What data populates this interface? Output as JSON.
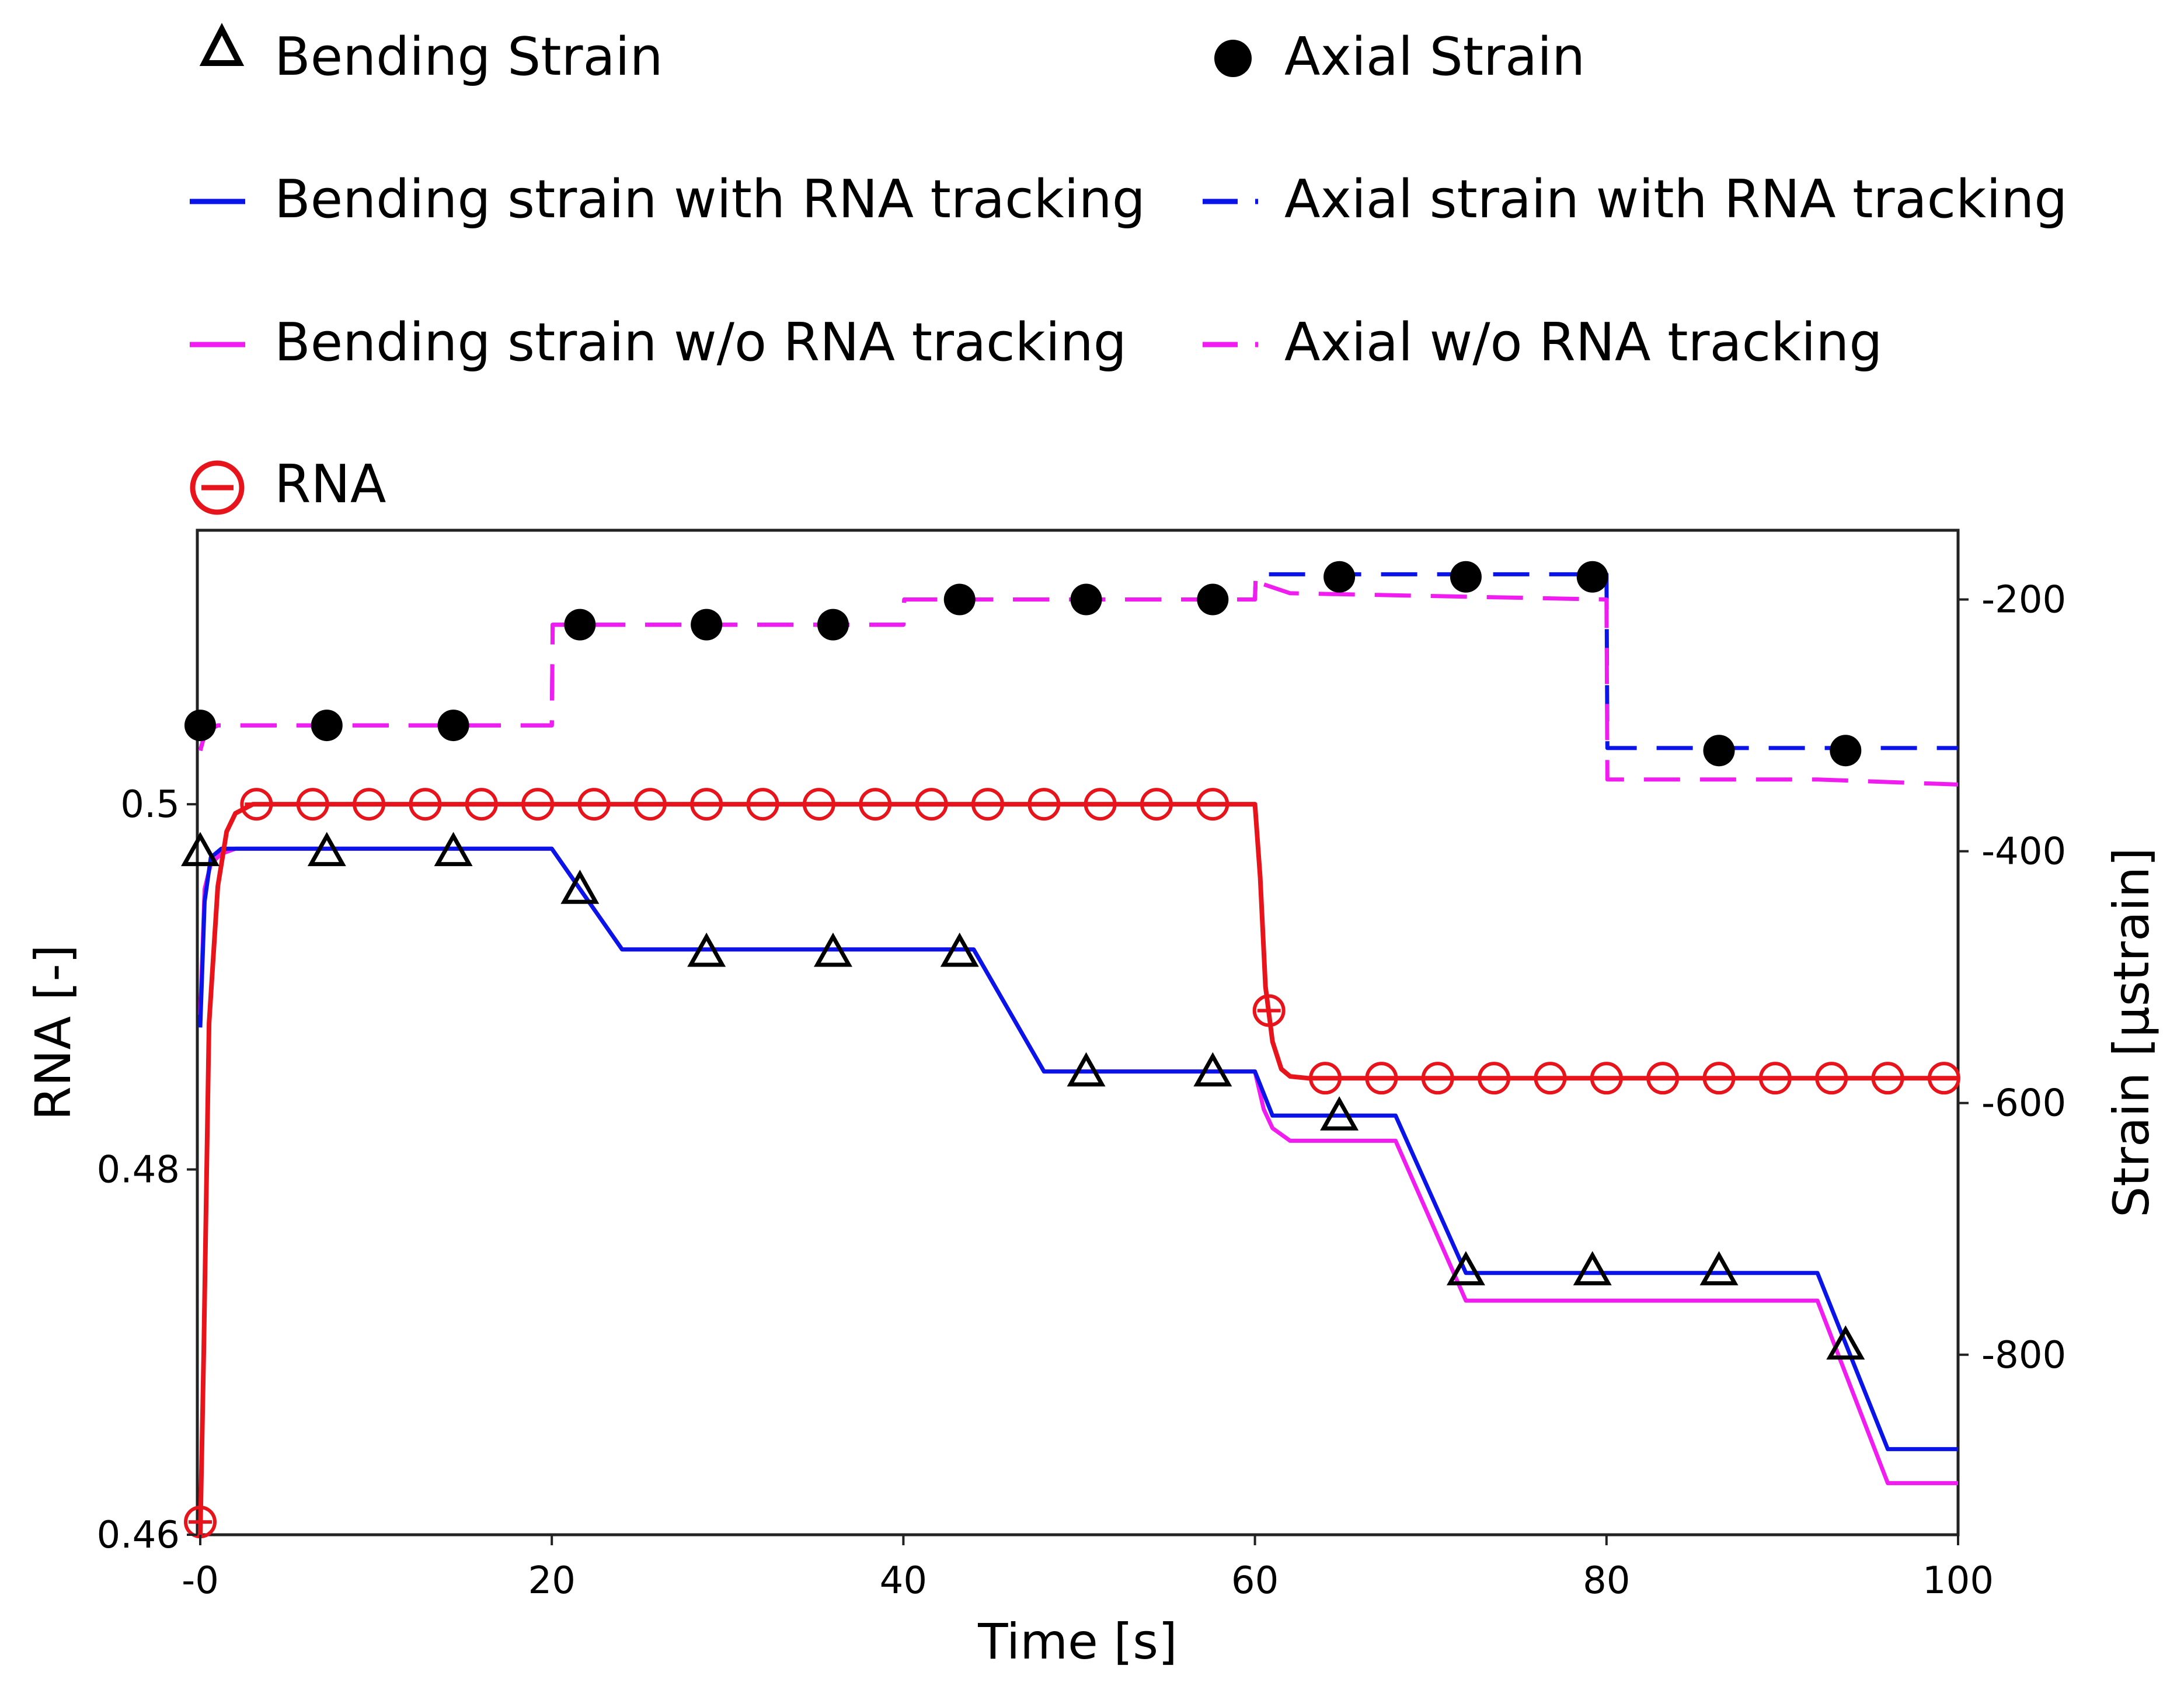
{
  "chart_data": {
    "type": "line",
    "title": "",
    "xlabel": "Time [s]",
    "ylabel": "RNA [-]",
    "y2label": "Strain [µstrain]",
    "xlim": [
      0,
      100
    ],
    "ylim": [
      0.46,
      0.515
    ],
    "y2lim": [
      -943,
      -145
    ],
    "x_ticks": [
      0,
      20,
      40,
      60,
      80,
      100
    ],
    "x_tick_labels": [
      "-0",
      "20",
      "40",
      "60",
      "80",
      "100"
    ],
    "y_ticks": [
      0.46,
      0.48,
      0.5
    ],
    "y_tick_labels": [
      "0.46",
      "0.48",
      "0.5"
    ],
    "y2_ticks": [
      -200,
      -400,
      -600,
      -800
    ],
    "y2_tick_labels": [
      "-200",
      "-400",
      "-600",
      "-800"
    ],
    "legend_position": "top",
    "grid": false,
    "colors": {
      "rna": "#e8141c",
      "with_rna": "#0a14e8",
      "without_rna": "#f01cf0",
      "markers": "#000000",
      "frame": "#222222"
    },
    "legend": [
      {
        "label": "Bending Strain",
        "symbol": "open-triangle",
        "color": "#000000"
      },
      {
        "label": "Axial Strain",
        "symbol": "filled-circle",
        "color": "#000000"
      },
      {
        "label": "Bending strain with RNA tracking",
        "symbol": "solid-line",
        "color": "#0a14e8"
      },
      {
        "label": "Axial strain with RNA tracking",
        "symbol": "dashed-line",
        "color": "#0a14e8"
      },
      {
        "label": "Bending strain w/o RNA tracking",
        "symbol": "solid-line",
        "color": "#f01cf0"
      },
      {
        "label": "Axial w/o RNA tracking",
        "symbol": "dashed-line",
        "color": "#f01cf0"
      },
      {
        "label": "RNA",
        "symbol": "open-circle-line",
        "color": "#e8141c"
      }
    ],
    "series": [
      {
        "name": "RNA",
        "axis": "left",
        "style": "solid",
        "color": "#e8141c",
        "x": [
          0,
          0.2,
          0.5,
          1,
          1.5,
          2,
          3,
          4,
          60,
          60.3,
          60.6,
          61,
          61.5,
          62,
          63,
          64,
          100
        ],
        "y": [
          0.46,
          0.47,
          0.488,
          0.4955,
          0.4985,
          0.4995,
          0.5,
          0.5,
          0.5,
          0.496,
          0.49,
          0.487,
          0.4855,
          0.4851,
          0.485,
          0.485,
          0.485
        ]
      },
      {
        "name": "RNA markers",
        "axis": "left",
        "style": "open-circle",
        "color": "#e8141c",
        "x": [
          0,
          3.2,
          6.4,
          9.6,
          12.8,
          16,
          19.2,
          22.4,
          25.6,
          28.8,
          32,
          35.2,
          38.4,
          41.6,
          44.8,
          48,
          51.2,
          54.4,
          57.6,
          60.8,
          64,
          67.2,
          70.4,
          73.6,
          76.8,
          80,
          83.2,
          86.4,
          89.6,
          92.8,
          96,
          99.2
        ],
        "y": [
          0.4607,
          0.5,
          0.5,
          0.5,
          0.5,
          0.5,
          0.5,
          0.5,
          0.5,
          0.5,
          0.5,
          0.5,
          0.5,
          0.5,
          0.5,
          0.5,
          0.5,
          0.5,
          0.5,
          0.4887,
          0.485,
          0.485,
          0.485,
          0.485,
          0.485,
          0.485,
          0.485,
          0.485,
          0.485,
          0.485,
          0.485,
          0.485
        ]
      },
      {
        "name": "Bending Strain",
        "axis": "right",
        "style": "open-triangle",
        "color": "#000000",
        "x": [
          0,
          7.2,
          14.4,
          21.6,
          28.8,
          36,
          43.2,
          50.4,
          57.6,
          64.8,
          72,
          79.2,
          86.4,
          93.6
        ],
        "y": [
          -400,
          -400,
          -400,
          -430,
          -480,
          -480,
          -480,
          -575,
          -575,
          -610,
          -733,
          -733,
          -733,
          -792
        ]
      },
      {
        "name": "Axial Strain",
        "axis": "right",
        "style": "filled-circle",
        "color": "#000000",
        "x": [
          0,
          7.2,
          14.4,
          21.6,
          28.8,
          36,
          43.2,
          50.4,
          57.6,
          64.8,
          72,
          79.2,
          86.4,
          93.6
        ],
        "y": [
          -300,
          -300,
          -300,
          -220,
          -220,
          -220,
          -200,
          -200,
          -200,
          -182,
          -182,
          -182,
          -320,
          -320
        ]
      },
      {
        "name": "Bending strain with RNA tracking",
        "axis": "right",
        "style": "solid",
        "color": "#0a14e8",
        "x": [
          0,
          0.25,
          0.6,
          1.2,
          2,
          20,
          24,
          44,
          48,
          60,
          61,
          68,
          72,
          92,
          96,
          100
        ],
        "y": [
          -540,
          -440,
          -405,
          -398,
          -398,
          -398,
          -478,
          -478,
          -575,
          -575,
          -610,
          -610,
          -735,
          -735,
          -875,
          -875
        ]
      },
      {
        "name": "Bending strain w/o RNA tracking",
        "axis": "right",
        "style": "solid",
        "color": "#f01cf0",
        "x": [
          0,
          0.25,
          0.6,
          1.2,
          2,
          20,
          24,
          44,
          48,
          60,
          60.5,
          61,
          62,
          68,
          72,
          92,
          96,
          100
        ],
        "y": [
          -530,
          -430,
          -410,
          -402,
          -398,
          -398,
          -478,
          -478,
          -575,
          -575,
          -605,
          -620,
          -630,
          -630,
          -757,
          -757,
          -902,
          -902
        ]
      },
      {
        "name": "Axial strain with RNA tracking",
        "axis": "right",
        "style": "dashed",
        "color": "#0a14e8",
        "x": [
          0,
          0.3,
          1,
          20,
          20.05,
          40,
          40.05,
          60,
          60.05,
          80,
          80.05,
          100
        ],
        "y": [
          -320,
          -305,
          -300,
          -300,
          -220,
          -220,
          -200,
          -200,
          -180,
          -180,
          -318,
          -318
        ]
      },
      {
        "name": "Axial w/o RNA tracking",
        "axis": "right",
        "style": "dashed",
        "color": "#f01cf0",
        "x": [
          0,
          0.3,
          1,
          20,
          20.05,
          40,
          40.05,
          60,
          60.05,
          60.5,
          62,
          80,
          80.05,
          92,
          100
        ],
        "y": [
          -320,
          -305,
          -300,
          -300,
          -220,
          -220,
          -200,
          -200,
          -180,
          -188,
          -195,
          -200,
          -343,
          -343,
          -347
        ]
      }
    ]
  }
}
